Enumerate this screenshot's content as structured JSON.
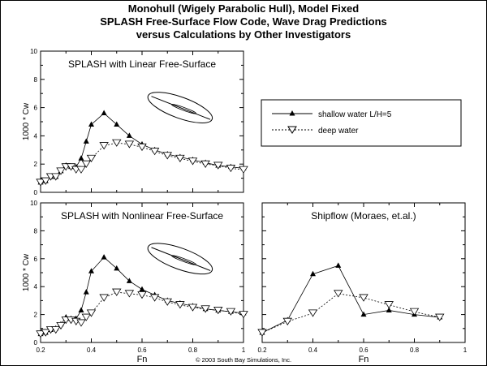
{
  "title": {
    "line1": "Monohull (Wigely Parabolic Hull), Model Fixed",
    "line2": "SPLASH Free-Surface Flow Code, Wave Drag Predictions",
    "line3": "versus Calculations by Other Investigators"
  },
  "copyright": "© 2003 South Bay Simulations, Inc.",
  "legend": {
    "items": [
      "shallow water L/H=5",
      "deep water"
    ],
    "placement": "right-middle"
  },
  "chart_data": [
    {
      "type": "line",
      "title": "SPLASH with Linear Free-Surface",
      "xlabel": "",
      "ylabel": "1000 * Cw",
      "xlim": [
        0.2,
        1.0
      ],
      "ylim": [
        0,
        10
      ],
      "xticks": [],
      "yticks": [
        "0",
        "2",
        "4",
        "6",
        "8",
        "10"
      ],
      "hull_icon": true,
      "x": [
        0.2,
        0.22,
        0.24,
        0.26,
        0.28,
        0.3,
        0.32,
        0.34,
        0.36,
        0.38,
        0.4,
        0.45,
        0.5,
        0.55,
        0.6,
        0.65,
        0.7,
        0.75,
        0.8,
        0.85,
        0.9,
        0.95,
        1.0
      ],
      "series": [
        {
          "name": "shallow water L/H=5",
          "values": [
            0.7,
            0.8,
            1.1,
            1.1,
            1.5,
            1.9,
            1.8,
            1.8,
            2.4,
            3.6,
            4.8,
            5.6,
            4.8,
            4.0,
            3.4,
            3.0,
            2.7,
            2.5,
            2.3,
            2.1,
            1.9,
            1.8,
            1.7
          ]
        },
        {
          "name": "deep water",
          "values": [
            0.7,
            0.8,
            1.1,
            1.1,
            1.5,
            1.8,
            1.8,
            1.6,
            1.6,
            2.0,
            2.4,
            3.3,
            3.5,
            3.4,
            3.2,
            2.9,
            2.6,
            2.4,
            2.2,
            2.0,
            1.9,
            1.7,
            1.6
          ]
        }
      ]
    },
    {
      "type": "line",
      "title": "SPLASH with Nonlinear Free-Surface",
      "xlabel": "Fn",
      "ylabel": "1000 * Cw",
      "xlim": [
        0.2,
        1.0
      ],
      "ylim": [
        0,
        10
      ],
      "xticks": [
        "0.2",
        "0.4",
        "0.6",
        "0.8",
        "1"
      ],
      "yticks": [
        "0",
        "2",
        "4",
        "6",
        "8",
        "10"
      ],
      "hull_icon": true,
      "x": [
        0.2,
        0.22,
        0.24,
        0.26,
        0.28,
        0.3,
        0.32,
        0.34,
        0.36,
        0.38,
        0.4,
        0.45,
        0.5,
        0.55,
        0.6,
        0.65,
        0.7,
        0.75,
        0.8,
        0.85,
        0.9,
        0.95,
        1.0
      ],
      "series": [
        {
          "name": "shallow water L/H=5",
          "values": [
            0.6,
            0.7,
            0.9,
            1.0,
            1.3,
            1.8,
            1.7,
            1.7,
            2.3,
            3.6,
            5.1,
            6.1,
            5.3,
            4.4,
            3.8,
            3.4,
            3.0,
            2.8,
            2.6,
            2.4,
            2.3,
            2.2,
            2.1
          ]
        },
        {
          "name": "deep water",
          "values": [
            0.6,
            0.7,
            0.9,
            0.9,
            1.2,
            1.6,
            1.6,
            1.5,
            1.4,
            1.8,
            2.1,
            3.2,
            3.6,
            3.5,
            3.4,
            3.2,
            2.9,
            2.7,
            2.5,
            2.4,
            2.3,
            2.2,
            2.0
          ]
        }
      ]
    },
    {
      "type": "line",
      "title": "Shipflow (Moraes, et.al.)",
      "xlabel": "Fn",
      "ylabel": "",
      "xlim": [
        0.2,
        1.0
      ],
      "ylim": [
        0,
        10
      ],
      "xticks": [
        "0.2",
        "0.4",
        "0.6",
        "0.8",
        "1"
      ],
      "yticks": [],
      "hull_icon": false,
      "x": [
        0.2,
        0.3,
        0.4,
        0.5,
        0.6,
        0.7,
        0.8,
        0.9
      ],
      "series": [
        {
          "name": "shallow water L/H=5",
          "values": [
            0.7,
            1.6,
            4.9,
            5.5,
            2.0,
            2.3,
            2.0,
            1.8
          ]
        },
        {
          "name": "deep water",
          "values": [
            0.7,
            1.5,
            2.1,
            3.5,
            3.2,
            2.7,
            2.2,
            1.8
          ]
        }
      ]
    }
  ]
}
